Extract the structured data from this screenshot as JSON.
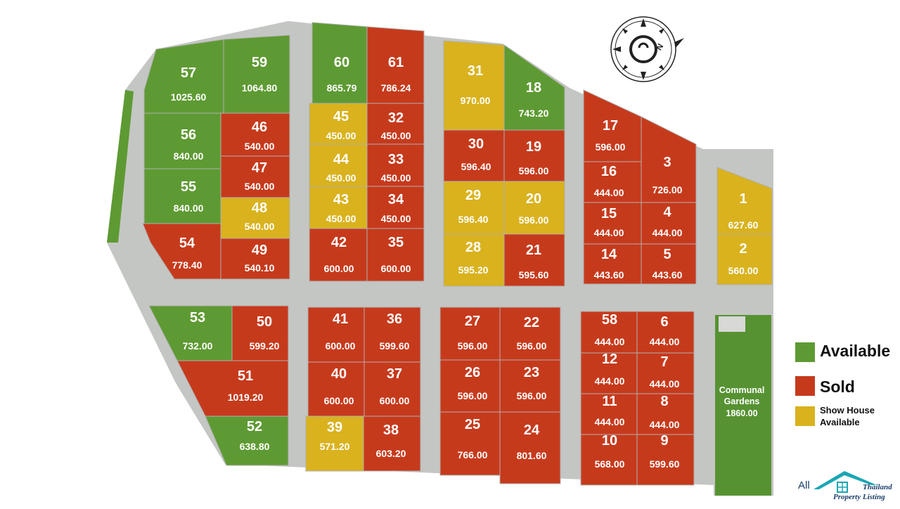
{
  "colors": {
    "available": "#5e9a33",
    "sold": "#c63a1c",
    "show_house": "#d9b21e",
    "road": "#c4c6c3",
    "garden": "#569232"
  },
  "plots": [
    {
      "id": "57",
      "area": "1025.60",
      "status": "available"
    },
    {
      "id": "59",
      "area": "1064.80",
      "status": "available"
    },
    {
      "id": "56",
      "area": "840.00",
      "status": "available"
    },
    {
      "id": "46",
      "area": "540.00",
      "status": "sold"
    },
    {
      "id": "47",
      "area": "540.00",
      "status": "sold"
    },
    {
      "id": "55",
      "area": "840.00",
      "status": "available"
    },
    {
      "id": "48",
      "area": "540.00",
      "status": "show_house"
    },
    {
      "id": "54",
      "area": "778.40",
      "status": "sold"
    },
    {
      "id": "49",
      "area": "540.10",
      "status": "sold"
    },
    {
      "id": "60",
      "area": "865.79",
      "status": "available"
    },
    {
      "id": "61",
      "area": "786.24",
      "status": "sold"
    },
    {
      "id": "45",
      "area": "450.00",
      "status": "show_house"
    },
    {
      "id": "32",
      "area": "450.00",
      "status": "sold"
    },
    {
      "id": "44",
      "area": "450.00",
      "status": "show_house"
    },
    {
      "id": "33",
      "area": "450.00",
      "status": "sold"
    },
    {
      "id": "43",
      "area": "450.00",
      "status": "show_house"
    },
    {
      "id": "34",
      "area": "450.00",
      "status": "sold"
    },
    {
      "id": "42",
      "area": "600.00",
      "status": "sold"
    },
    {
      "id": "35",
      "area": "600.00",
      "status": "sold"
    },
    {
      "id": "31",
      "area": "970.00",
      "status": "show_house"
    },
    {
      "id": "18",
      "area": "743.20",
      "status": "available"
    },
    {
      "id": "30",
      "area": "596.40",
      "status": "sold"
    },
    {
      "id": "19",
      "area": "596.00",
      "status": "sold"
    },
    {
      "id": "29",
      "area": "596.40",
      "status": "show_house"
    },
    {
      "id": "20",
      "area": "596.00",
      "status": "show_house"
    },
    {
      "id": "28",
      "area": "595.20",
      "status": "show_house"
    },
    {
      "id": "21",
      "area": "595.60",
      "status": "sold"
    },
    {
      "id": "17",
      "area": "596.00",
      "status": "sold"
    },
    {
      "id": "3",
      "area": "726.00",
      "status": "sold"
    },
    {
      "id": "16",
      "area": "444.00",
      "status": "sold"
    },
    {
      "id": "15",
      "area": "444.00",
      "status": "sold"
    },
    {
      "id": "4",
      "area": "444.00",
      "status": "sold"
    },
    {
      "id": "14",
      "area": "443.60",
      "status": "sold"
    },
    {
      "id": "5",
      "area": "443.60",
      "status": "sold"
    },
    {
      "id": "1",
      "area": "627.60",
      "status": "show_house"
    },
    {
      "id": "2",
      "area": "560.00",
      "status": "show_house"
    },
    {
      "id": "53",
      "area": "732.00",
      "status": "available"
    },
    {
      "id": "50",
      "area": "599.20",
      "status": "sold"
    },
    {
      "id": "51",
      "area": "1019.20",
      "status": "sold"
    },
    {
      "id": "52",
      "area": "638.80",
      "status": "available"
    },
    {
      "id": "41",
      "area": "600.00",
      "status": "sold"
    },
    {
      "id": "36",
      "area": "599.60",
      "status": "sold"
    },
    {
      "id": "40",
      "area": "600.00",
      "status": "sold"
    },
    {
      "id": "37",
      "area": "600.00",
      "status": "sold"
    },
    {
      "id": "39",
      "area": "571.20",
      "status": "show_house"
    },
    {
      "id": "38",
      "area": "603.20",
      "status": "sold"
    },
    {
      "id": "27",
      "area": "596.00",
      "status": "sold"
    },
    {
      "id": "22",
      "area": "596.00",
      "status": "sold"
    },
    {
      "id": "26",
      "area": "596.00",
      "status": "sold"
    },
    {
      "id": "23",
      "area": "596.00",
      "status": "sold"
    },
    {
      "id": "25",
      "area": "766.00",
      "status": "sold"
    },
    {
      "id": "24",
      "area": "801.60",
      "status": "sold"
    },
    {
      "id": "58",
      "area": "444.00",
      "status": "sold"
    },
    {
      "id": "6",
      "area": "444.00",
      "status": "sold"
    },
    {
      "id": "12",
      "area": "444.00",
      "status": "sold"
    },
    {
      "id": "7",
      "area": "444.00",
      "status": "sold"
    },
    {
      "id": "11",
      "area": "444.00",
      "status": "sold"
    },
    {
      "id": "8",
      "area": "444.00",
      "status": "sold"
    },
    {
      "id": "10",
      "area": "568.00",
      "status": "sold"
    },
    {
      "id": "9",
      "area": "599.60",
      "status": "sold"
    }
  ],
  "communal": {
    "line1": "Communal",
    "line2": "Gardens",
    "area": "1860.00"
  },
  "legend": {
    "available": "Available",
    "sold": "Sold",
    "show_line1": "Show House",
    "show_line2": "Available"
  },
  "logo": {
    "all": "All",
    "line1": "Thailand",
    "line2": "Property Listing"
  },
  "icons": {
    "compass": "compass-rose-icon",
    "logo": "house-roof-icon"
  }
}
